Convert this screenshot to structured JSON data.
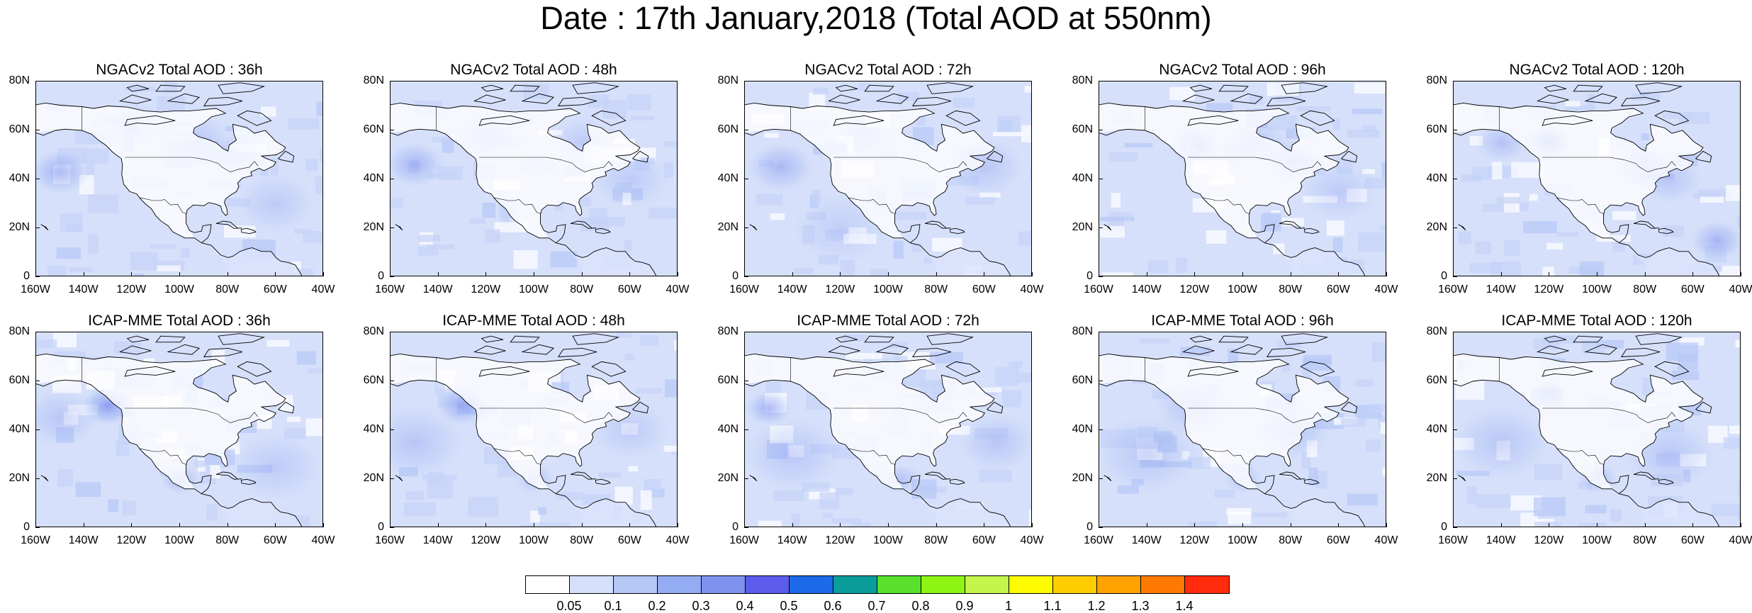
{
  "title": "Date : 17th January,2018 (Total AOD at 550nm)",
  "axes": {
    "x_ticks": [
      "160W",
      "140W",
      "120W",
      "100W",
      "80W",
      "60W",
      "40W"
    ],
    "y_ticks": [
      "80N",
      "60N",
      "40N",
      "20N",
      "0"
    ]
  },
  "panels": [
    {
      "title": "NGACv2 Total AOD : 36h",
      "model": "NGACv2",
      "lead": "36h"
    },
    {
      "title": "NGACv2 Total AOD : 48h",
      "model": "NGACv2",
      "lead": "48h"
    },
    {
      "title": "NGACv2 Total AOD : 72h",
      "model": "NGACv2",
      "lead": "72h"
    },
    {
      "title": "NGACv2 Total AOD : 96h",
      "model": "NGACv2",
      "lead": "96h"
    },
    {
      "title": "NGACv2 Total AOD : 120h",
      "model": "NGACv2",
      "lead": "120h"
    },
    {
      "title": "ICAP-MME Total AOD : 36h",
      "model": "ICAP-MME",
      "lead": "36h"
    },
    {
      "title": "ICAP-MME Total AOD : 48h",
      "model": "ICAP-MME",
      "lead": "48h"
    },
    {
      "title": "ICAP-MME Total AOD : 72h",
      "model": "ICAP-MME",
      "lead": "72h"
    },
    {
      "title": "ICAP-MME Total AOD : 96h",
      "model": "ICAP-MME",
      "lead": "96h"
    },
    {
      "title": "ICAP-MME Total AOD : 120h",
      "model": "ICAP-MME",
      "lead": "120h"
    }
  ],
  "colorbar": {
    "labels": [
      "0.05",
      "0.1",
      "0.2",
      "0.3",
      "0.4",
      "0.5",
      "0.6",
      "0.7",
      "0.8",
      "0.9",
      "1",
      "1.1",
      "1.2",
      "1.3",
      "1.4"
    ],
    "colors": [
      "#ffffff",
      "#d6e0fa",
      "#b6c8f6",
      "#94acf3",
      "#7f93ee",
      "#5c5ced",
      "#1c6ae8",
      "#0a9d9a",
      "#58e02c",
      "#8ef414",
      "#c3f54a",
      "#fffb00",
      "#ffcd00",
      "#ffa200",
      "#ff7a00",
      "#ff2b0c"
    ]
  },
  "map_colors": {
    "land": "#ffffff",
    "ocean_low": "#d6e0fa",
    "ocean_mid": "#b6c8f6",
    "plume_high": "#7f93ee",
    "coast": "#000000"
  }
}
